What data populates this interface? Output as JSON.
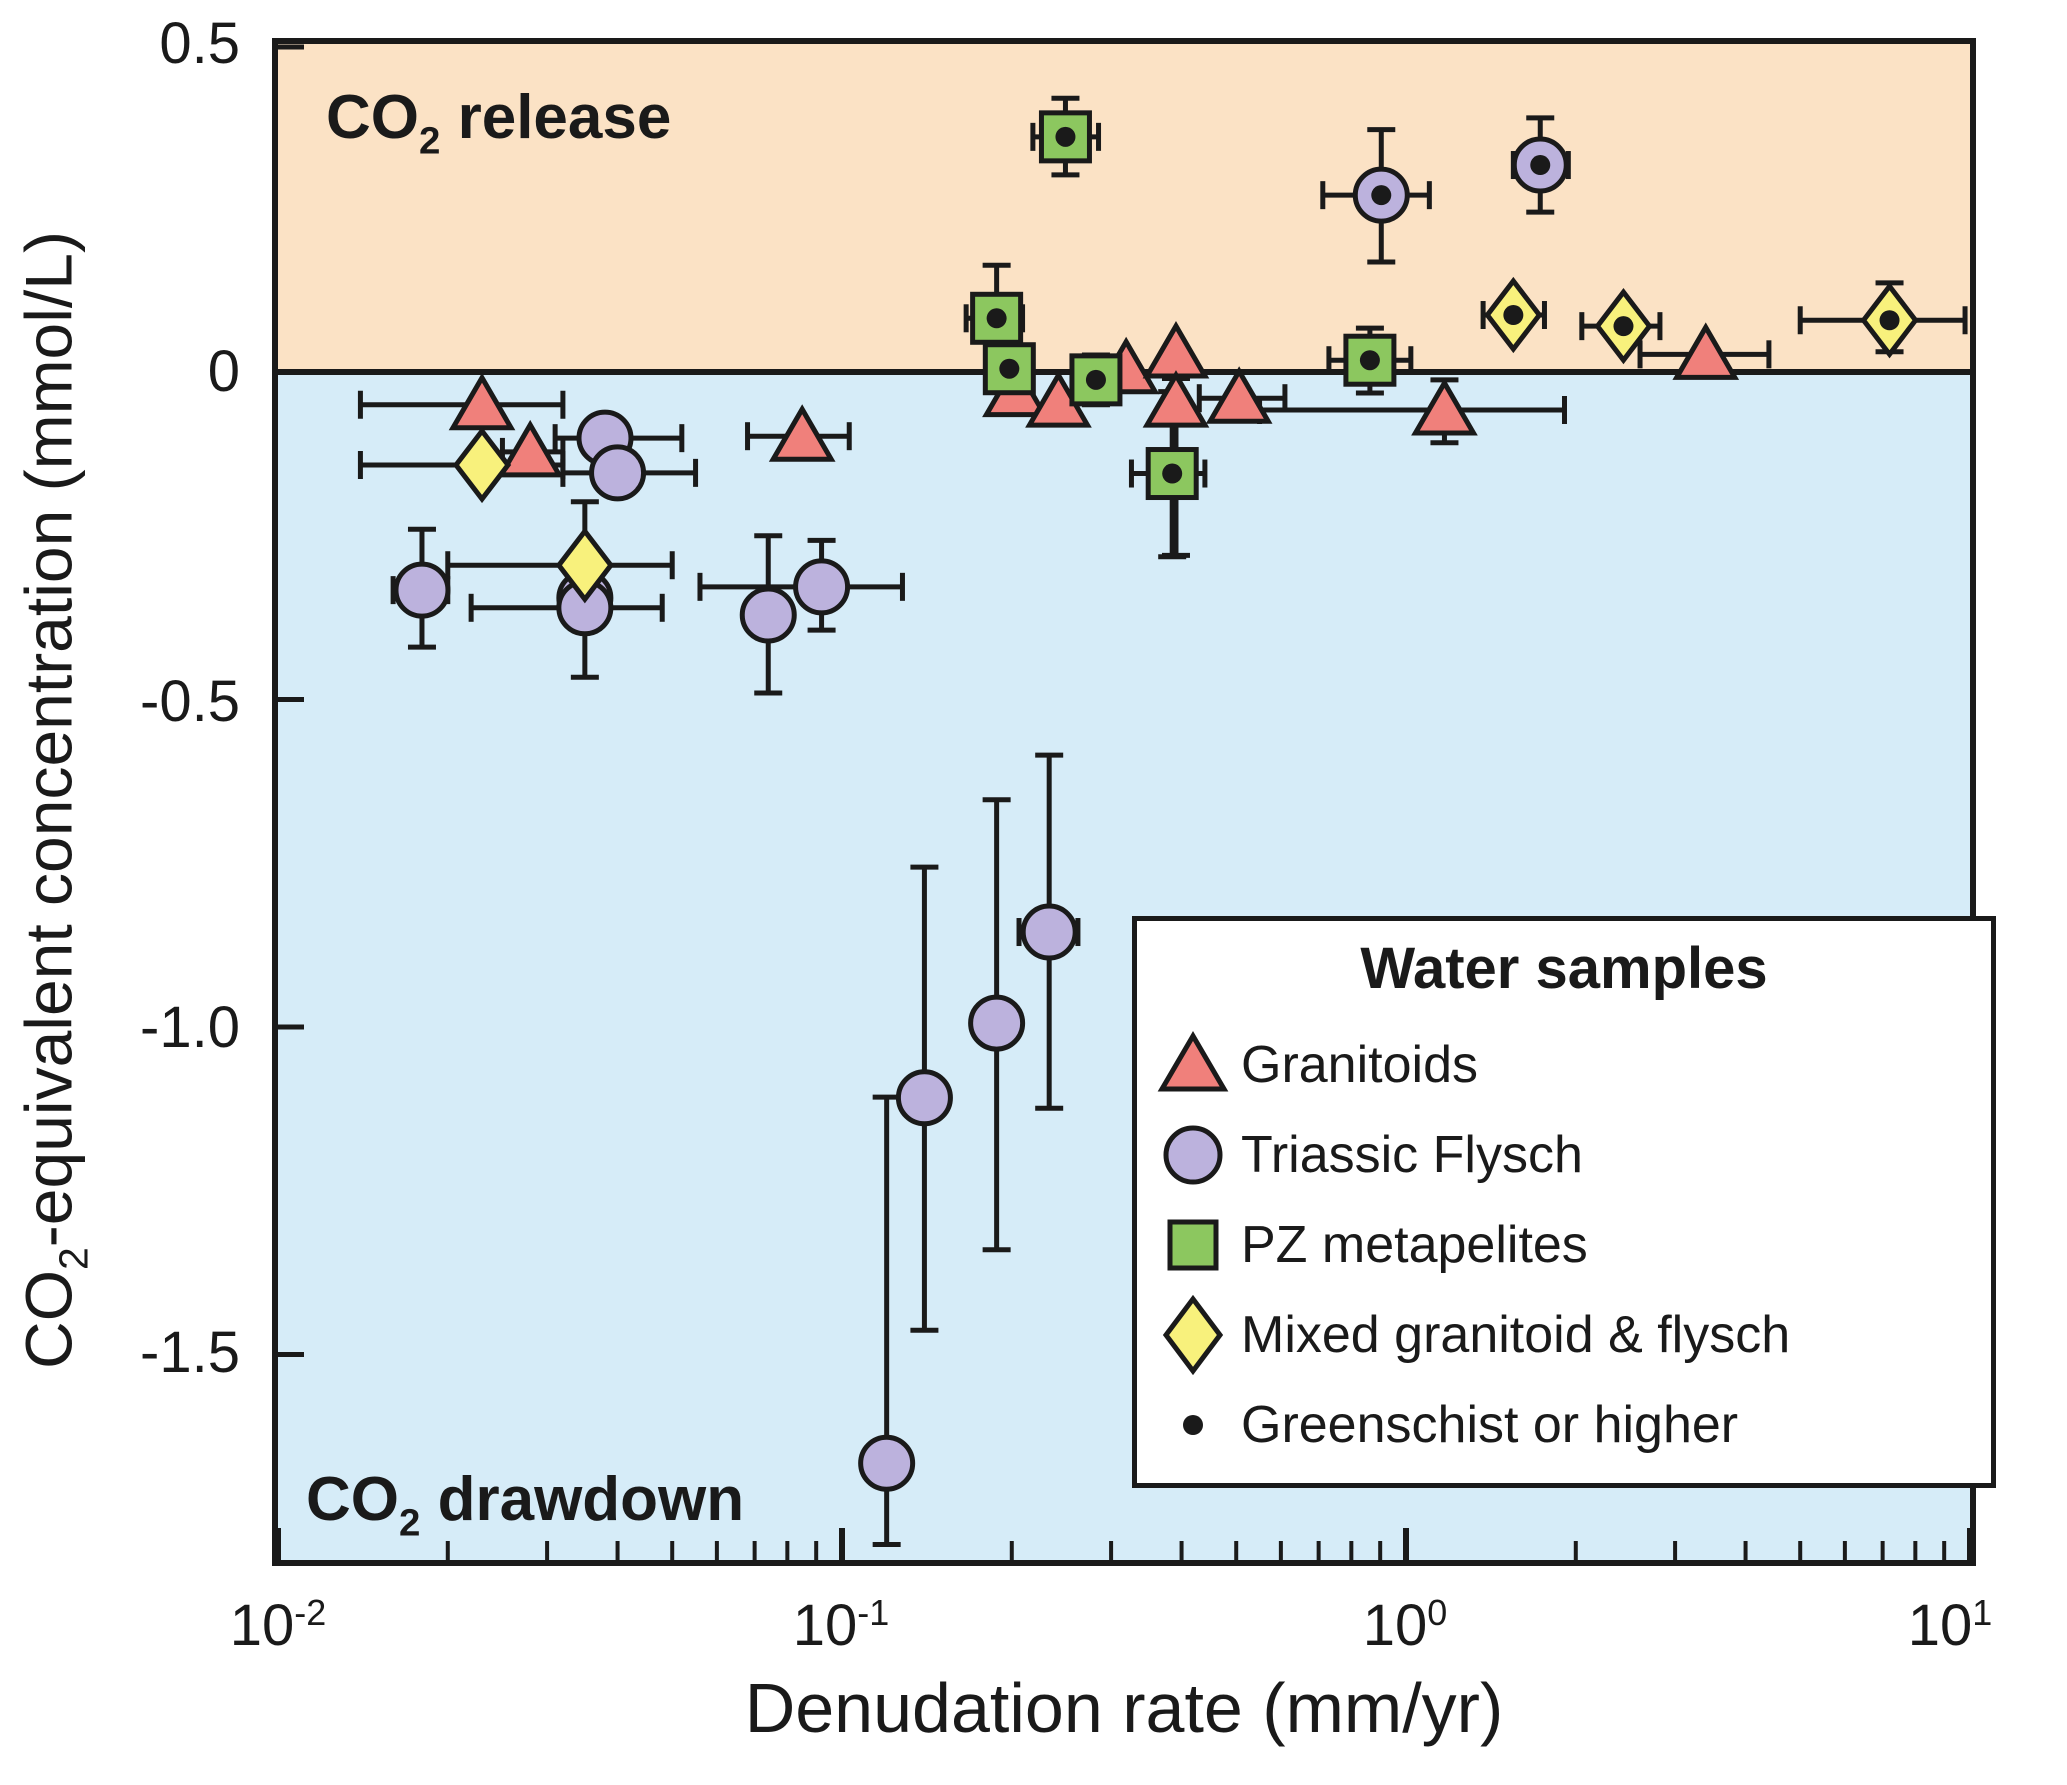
{
  "colors": {
    "background_release": "#FBE2C5",
    "background_drawdown": "#D6ECF8",
    "granitoids": "#F0807B",
    "triassic_flysch": "#BCB2DD",
    "pz_metapelites": "#8CC75F",
    "mixed": "#F8F17C",
    "line": "#1A1A1A",
    "dot": "#1A1A1A"
  },
  "annotations": {
    "release": {
      "pre": "CO",
      "sub": "2",
      "post": " release"
    },
    "drawdown": {
      "pre": "CO",
      "sub": "2",
      "post": " drawdown"
    }
  },
  "axes": {
    "x": {
      "title": "Denudation rate (mm/yr)",
      "scale": "log",
      "ticks": [
        {
          "v": 0.01,
          "base": "10",
          "exp": "-2"
        },
        {
          "v": 0.1,
          "base": "10",
          "exp": "-1"
        },
        {
          "v": 1,
          "base": "10",
          "exp": "0"
        },
        {
          "v": 10,
          "base": "10",
          "exp": "1"
        }
      ]
    },
    "y": {
      "title": {
        "pre": "CO",
        "sub": "2",
        "post": "-equivalent concentration (mmol/L)"
      },
      "ticks": [
        {
          "v": 0.5,
          "label": "0.5"
        },
        {
          "v": 0,
          "label": "0"
        },
        {
          "v": -0.5,
          "label": "-0.5"
        },
        {
          "v": -1.0,
          "label": "-1.0"
        },
        {
          "v": -1.5,
          "label": "-1.5"
        }
      ]
    }
  },
  "legend": {
    "title": "Water samples",
    "items": [
      {
        "marker": "triangle",
        "series": "granitoids",
        "label": "Granitoids"
      },
      {
        "marker": "circle",
        "series": "triassic_flysch",
        "label": "Triassic Flysch"
      },
      {
        "marker": "square",
        "series": "pz_metapelites",
        "label": "PZ metapelites"
      },
      {
        "marker": "diamond",
        "series": "mixed",
        "label": "Mixed granitoid & flysch"
      },
      {
        "marker": "dot",
        "series": "dot",
        "label": "Greenschist or higher"
      }
    ]
  },
  "chart_data": {
    "type": "scatter",
    "xlabel": "Denudation rate (mm/yr)",
    "ylabel": "CO2-equivalent concentration (mmol/L)",
    "xscale": "log",
    "xlim": [
      0.01,
      10
    ],
    "ylim": [
      -1.814,
      0.5
    ],
    "zero_line": 0,
    "regions": [
      {
        "label": "CO2 release",
        "from": 0,
        "to": 0.5
      },
      {
        "label": "CO2 drawdown",
        "from": -1.814,
        "to": 0
      }
    ],
    "series": [
      {
        "name": "Granitoids",
        "key": "granitoids",
        "marker": "triangle",
        "points": [
          {
            "x": 0.023,
            "y": -0.05,
            "xerr": [
              0.014,
              0.032
            ]
          },
          {
            "x": 0.028,
            "y": -0.122,
            "xerr": [
              0.025,
              0.032
            ]
          },
          {
            "x": 0.085,
            "y": -0.098,
            "xerr": [
              0.068,
              0.103
            ]
          },
          {
            "x": 0.203,
            "y": -0.03
          },
          {
            "x": 0.242,
            "y": -0.046
          },
          {
            "x": 0.319,
            "y": 0.005
          },
          {
            "x": 0.391,
            "y": 0.029
          },
          {
            "x": 0.391,
            "y": -0.046,
            "yerr": [
              -0.28,
              -0.01
            ]
          },
          {
            "x": 0.506,
            "y": -0.04,
            "xerr": [
              0.43,
              0.61
            ]
          },
          {
            "x": 1.17,
            "y": -0.058,
            "xerr": [
              0.55,
              1.91
            ],
            "yerr": [
              -0.108,
              -0.012
            ]
          },
          {
            "x": 3.4,
            "y": 0.027,
            "xerr": [
              2.6,
              4.4
            ]
          }
        ]
      },
      {
        "name": "Triassic Flysch",
        "key": "triassic_flysch",
        "marker": "circle",
        "points": [
          {
            "x": 0.038,
            "y": -0.101,
            "xerr": [
              0.031,
              0.052
            ]
          },
          {
            "x": 0.04,
            "y": -0.154,
            "xerr": [
              0.032,
              0.055
            ]
          },
          {
            "x": 0.018,
            "y": -0.333,
            "xerr": [
              0.016,
              0.02
            ],
            "yerr": [
              -0.42,
              -0.24
            ]
          },
          {
            "x": 0.035,
            "y": -0.345
          },
          {
            "x": 0.035,
            "y": -0.36,
            "xerr": [
              0.022,
              0.048
            ]
          },
          {
            "x": 0.074,
            "y": -0.371,
            "yerr": [
              -0.49,
              -0.25
            ]
          },
          {
            "x": 0.092,
            "y": -0.328,
            "xerr": [
              0.056,
              0.128
            ],
            "yerr": [
              -0.394,
              -0.257
            ]
          },
          {
            "x": 0.233,
            "y": -0.855,
            "xerr": [
              0.206,
              0.262
            ],
            "yerr": [
              -1.124,
              -0.585
            ]
          },
          {
            "x": 0.188,
            "y": -0.994,
            "yerr": [
              -1.34,
              -0.653
            ]
          },
          {
            "x": 0.14,
            "y": -1.108,
            "yerr": [
              -1.463,
              -0.756
            ]
          },
          {
            "x": 0.12,
            "y": -1.666,
            "yerr": [
              -1.79,
              -1.107
            ]
          },
          {
            "x": 0.904,
            "y": 0.27,
            "dot": true,
            "xerr": [
              0.712,
              1.1
            ],
            "yerr": [
              0.168,
              0.37
            ]
          },
          {
            "x": 1.73,
            "y": 0.316,
            "dot": true,
            "xerr": [
              1.55,
              1.94
            ],
            "yerr": [
              0.244,
              0.388
            ]
          }
        ]
      },
      {
        "name": "PZ metapelites",
        "key": "pz_metapelites",
        "marker": "square",
        "points": [
          {
            "x": 0.249,
            "y": 0.359,
            "dot": true,
            "xerr": [
              0.218,
              0.285
            ],
            "yerr": [
              0.301,
              0.418
            ]
          },
          {
            "x": 0.188,
            "y": 0.082,
            "dot": true,
            "xerr": [
              0.166,
              0.209
            ],
            "yerr": [
              0.0,
              0.163
            ]
          },
          {
            "x": 0.198,
            "y": 0.005,
            "dot": true
          },
          {
            "x": 0.282,
            "y": -0.012,
            "dot": true,
            "yerr": [
              -0.05,
              0.026
            ]
          },
          {
            "x": 0.385,
            "y": -0.155,
            "dot": true,
            "xerr": [
              0.326,
              0.44
            ],
            "yerr": [
              -0.282,
              -0.03
            ]
          },
          {
            "x": 0.863,
            "y": 0.018,
            "dot": true,
            "xerr": [
              0.73,
              1.02
            ],
            "yerr": [
              -0.032,
              0.067
            ]
          }
        ]
      },
      {
        "name": "Mixed granitoid & flysch",
        "key": "mixed",
        "marker": "diamond",
        "points": [
          {
            "x": 0.023,
            "y": -0.142,
            "xerr": [
              0.014,
              0.032
            ]
          },
          {
            "x": 0.035,
            "y": -0.295,
            "xerr": [
              0.02,
              0.05
            ],
            "yerr": [
              -0.466,
              -0.198
            ]
          },
          {
            "x": 1.55,
            "y": 0.087,
            "dot": true,
            "xerr": [
              1.37,
              1.76
            ]
          },
          {
            "x": 2.43,
            "y": 0.07,
            "dot": true,
            "xerr": [
              2.05,
              2.82
            ]
          },
          {
            "x": 7.2,
            "y": 0.079,
            "dot": true,
            "xerr": [
              5.0,
              9.8
            ],
            "yerr": [
              0.031,
              0.136
            ]
          }
        ]
      }
    ]
  }
}
